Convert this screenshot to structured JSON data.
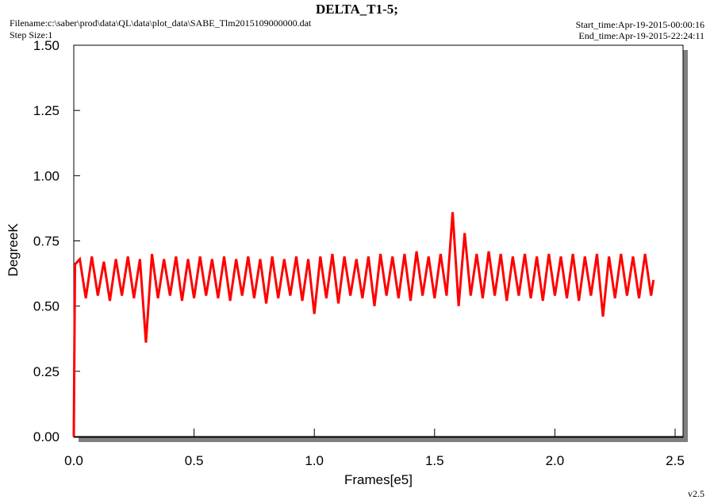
{
  "chart_data": {
    "type": "line",
    "title": "DELTA_T1-5;",
    "filename": "Filename:c:\\saber\\prod\\data\\QL\\data\\plot_data\\SABE_Tlm2015109000000.dat",
    "step_size": "Step Size:1",
    "start_time": "Start_time:Apr-19-2015-00:00:16",
    "end_time": "End_time:Apr-19-2015-22:24:11",
    "version": "v2.5",
    "x_label": "Frames[e5]",
    "y_label": "DegreeK",
    "xlim": [
      0,
      2.5
    ],
    "ylim": [
      0,
      1.5
    ],
    "xticks": [
      {
        "value": 0,
        "label": "0.0"
      },
      0.5,
      {
        "value": 1,
        "label": "1.0"
      },
      1.5,
      {
        "value": 2,
        "label": "2.0"
      },
      2.5
    ],
    "yticks": [
      {
        "value": 0,
        "label": "0.00"
      },
      0.25,
      {
        "value": 0.5,
        "label": "0.50"
      },
      0.75,
      {
        "value": 1,
        "label": "1.00"
      },
      1.25,
      {
        "value": 1.5,
        "label": "1.50"
      }
    ],
    "x": [
      0,
      0.005,
      0.025,
      0.05,
      0.075,
      0.1,
      0.125,
      0.15,
      0.175,
      0.2,
      0.225,
      0.25,
      0.275,
      0.3,
      0.325,
      0.35,
      0.375,
      0.4,
      0.425,
      0.45,
      0.475,
      0.5,
      0.525,
      0.55,
      0.575,
      0.6,
      0.625,
      0.65,
      0.675,
      0.7,
      0.725,
      0.75,
      0.775,
      0.8,
      0.825,
      0.85,
      0.875,
      0.9,
      0.925,
      0.95,
      0.975,
      1.0,
      1.025,
      1.05,
      1.075,
      1.1,
      1.125,
      1.15,
      1.175,
      1.2,
      1.225,
      1.25,
      1.275,
      1.3,
      1.325,
      1.35,
      1.375,
      1.4,
      1.425,
      1.45,
      1.475,
      1.5,
      1.525,
      1.55,
      1.575,
      1.6,
      1.625,
      1.65,
      1.675,
      1.7,
      1.725,
      1.75,
      1.775,
      1.8,
      1.825,
      1.85,
      1.875,
      1.9,
      1.925,
      1.95,
      1.975,
      2.0,
      2.025,
      2.05,
      2.075,
      2.1,
      2.125,
      2.15,
      2.175,
      2.2,
      2.225,
      2.25,
      2.275,
      2.3,
      2.325,
      2.35,
      2.375,
      2.4,
      2.41
    ],
    "series": [
      {
        "color": "#ff0000",
        "values": [
          0,
          0.66,
          0.68,
          0.53,
          0.69,
          0.54,
          0.67,
          0.52,
          0.68,
          0.54,
          0.69,
          0.53,
          0.68,
          0.36,
          0.7,
          0.53,
          0.68,
          0.54,
          0.69,
          0.52,
          0.68,
          0.53,
          0.69,
          0.54,
          0.68,
          0.53,
          0.69,
          0.52,
          0.68,
          0.54,
          0.69,
          0.53,
          0.68,
          0.51,
          0.69,
          0.53,
          0.68,
          0.54,
          0.69,
          0.52,
          0.68,
          0.47,
          0.69,
          0.53,
          0.7,
          0.51,
          0.69,
          0.54,
          0.68,
          0.53,
          0.69,
          0.5,
          0.7,
          0.54,
          0.69,
          0.53,
          0.7,
          0.52,
          0.71,
          0.54,
          0.69,
          0.53,
          0.7,
          0.54,
          0.86,
          0.5,
          0.78,
          0.54,
          0.7,
          0.53,
          0.71,
          0.54,
          0.7,
          0.52,
          0.69,
          0.54,
          0.7,
          0.53,
          0.69,
          0.52,
          0.7,
          0.54,
          0.69,
          0.53,
          0.7,
          0.52,
          0.69,
          0.54,
          0.7,
          0.46,
          0.69,
          0.53,
          0.7,
          0.54,
          0.69,
          0.53,
          0.7,
          0.54,
          0.6
        ]
      }
    ]
  }
}
